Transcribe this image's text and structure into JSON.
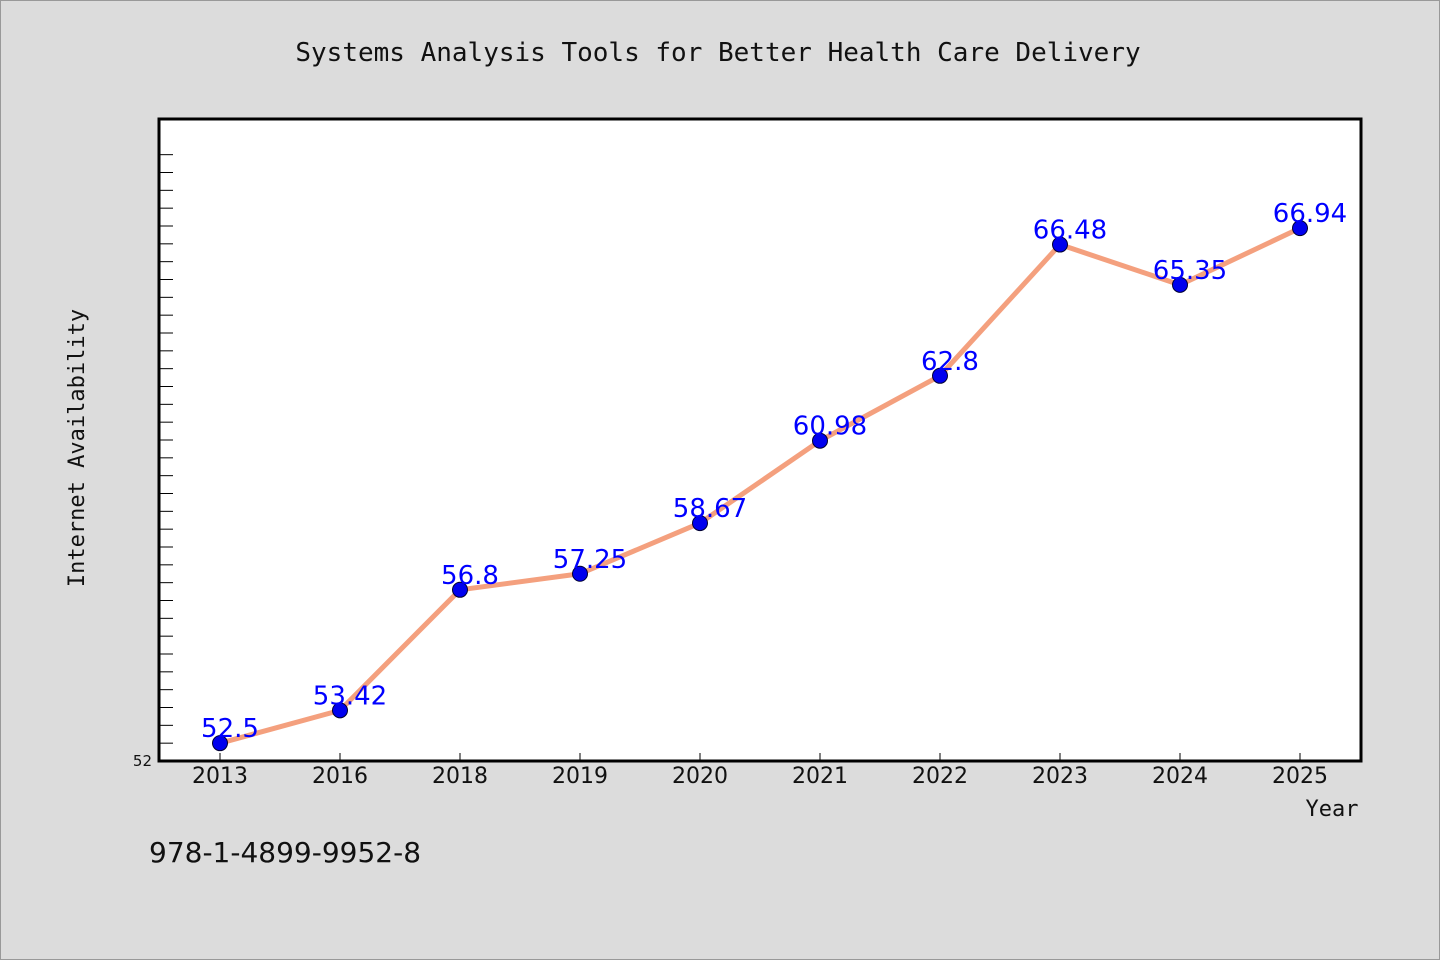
{
  "chart_data": {
    "type": "line",
    "title": "Systems Analysis Tools for Better Health Care Delivery",
    "xlabel": "Year",
    "ylabel": "Internet Availability",
    "categories": [
      "2013",
      "2016",
      "2018",
      "2019",
      "2020",
      "2021",
      "2022",
      "2023",
      "2024",
      "2025"
    ],
    "values": [
      52.5,
      53.42,
      56.8,
      57.25,
      58.67,
      60.98,
      62.8,
      66.48,
      65.35,
      66.94
    ],
    "data_labels": [
      "52.5",
      "53.42",
      "56.8",
      "57.25",
      "58.67",
      "60.98",
      "62.8",
      "66.48",
      "65.35",
      "66.94"
    ],
    "ylim": [
      52,
      70
    ],
    "yticks_labeled": [
      "52"
    ],
    "grid": false,
    "legend": "none",
    "colors": {
      "line": "#f4a07e",
      "marker": "#0000ee",
      "label": "#0000ff",
      "background": "#dcdcdc",
      "plot_background": "#ffffff"
    }
  },
  "footer": {
    "isbn": "978-1-4899-9952-8"
  }
}
